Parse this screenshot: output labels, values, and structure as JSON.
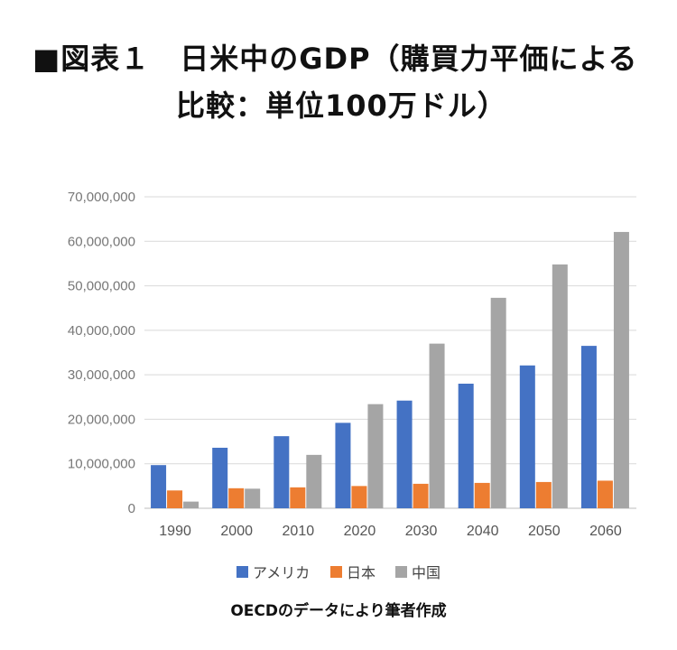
{
  "header": {
    "title_line1": "■図表１　日米中のGDP（購買力平価による",
    "title_line2": "比較：単位100万ドル）"
  },
  "caption": "OECDのデータにより筆者作成",
  "chart_data": {
    "type": "bar",
    "title": "日米中のGDP（購買力平価による比較：単位100万ドル）",
    "categories": [
      "1990",
      "2000",
      "2010",
      "2020",
      "2030",
      "2040",
      "2050",
      "2060"
    ],
    "series": [
      {
        "name": "アメリカ",
        "color": "#4472c4",
        "values": [
          9700000,
          13600000,
          16200000,
          19200000,
          24200000,
          28000000,
          32100000,
          36500000
        ]
      },
      {
        "name": "日本",
        "color": "#ed7d31",
        "values": [
          4000000,
          4500000,
          4700000,
          5000000,
          5500000,
          5700000,
          5900000,
          6200000
        ]
      },
      {
        "name": "中国",
        "color": "#a5a5a5",
        "values": [
          1500000,
          4400000,
          12000000,
          23400000,
          37000000,
          47300000,
          54800000,
          62100000
        ]
      }
    ],
    "ylim": [
      0,
      70000000
    ],
    "yticks": [
      "0",
      "10,000,000",
      "20,000,000",
      "30,000,000",
      "40,000,000",
      "50,000,000",
      "60,000,000",
      "70,000,000"
    ],
    "grid": true,
    "legend_position": "bottom"
  }
}
